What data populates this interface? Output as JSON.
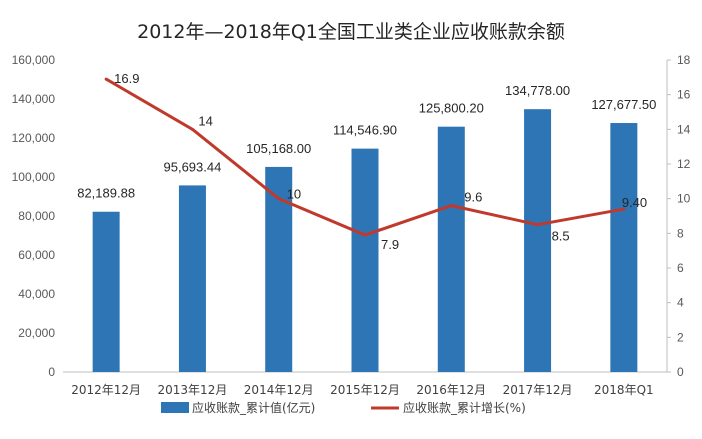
{
  "chart_data": {
    "type": "bar",
    "title": "2012年—2018年Q1全国工业类企业应收账款余额",
    "categories": [
      "2012年12月",
      "2013年12月",
      "2014年12月",
      "2015年12月",
      "2016年12月",
      "2017年12月",
      "2018年Q1"
    ],
    "series": [
      {
        "name": "应收账款_累计值(亿元)",
        "type": "bar",
        "axis": "left",
        "color": "#2e75b6",
        "values": [
          82189.88,
          95693.44,
          105168.0,
          114546.9,
          125800.2,
          134778.0,
          127677.5
        ],
        "labels": [
          "82,189.88",
          "95,693.44",
          "105,168.00",
          "114,546.90",
          "125,800.20",
          "134,778.00",
          "127,677.50"
        ]
      },
      {
        "name": "应收账款_累计增长(%)",
        "type": "line",
        "axis": "right",
        "color": "#c0392b",
        "values": [
          16.9,
          14,
          10,
          7.9,
          9.6,
          8.5,
          9.4
        ],
        "labels": [
          "16.9",
          "14",
          "10",
          "7.9",
          "9.6",
          "8.5",
          "9.40"
        ]
      }
    ],
    "y_left": {
      "ylim": [
        0,
        160000
      ],
      "ticks": [
        0,
        20000,
        40000,
        60000,
        80000,
        100000,
        120000,
        140000,
        160000
      ],
      "tick_labels": [
        "0",
        "20,000",
        "40,000",
        "60,000",
        "80,000",
        "100,000",
        "120,000",
        "140,000",
        "160,000"
      ]
    },
    "y_right": {
      "ylim": [
        0,
        18
      ],
      "ticks": [
        0,
        2,
        4,
        6,
        8,
        10,
        12,
        14,
        16,
        18
      ],
      "tick_labels": [
        "0",
        "2",
        "4",
        "6",
        "8",
        "10",
        "12",
        "14",
        "16",
        "18"
      ]
    },
    "grid": false,
    "legend_position": "bottom"
  }
}
